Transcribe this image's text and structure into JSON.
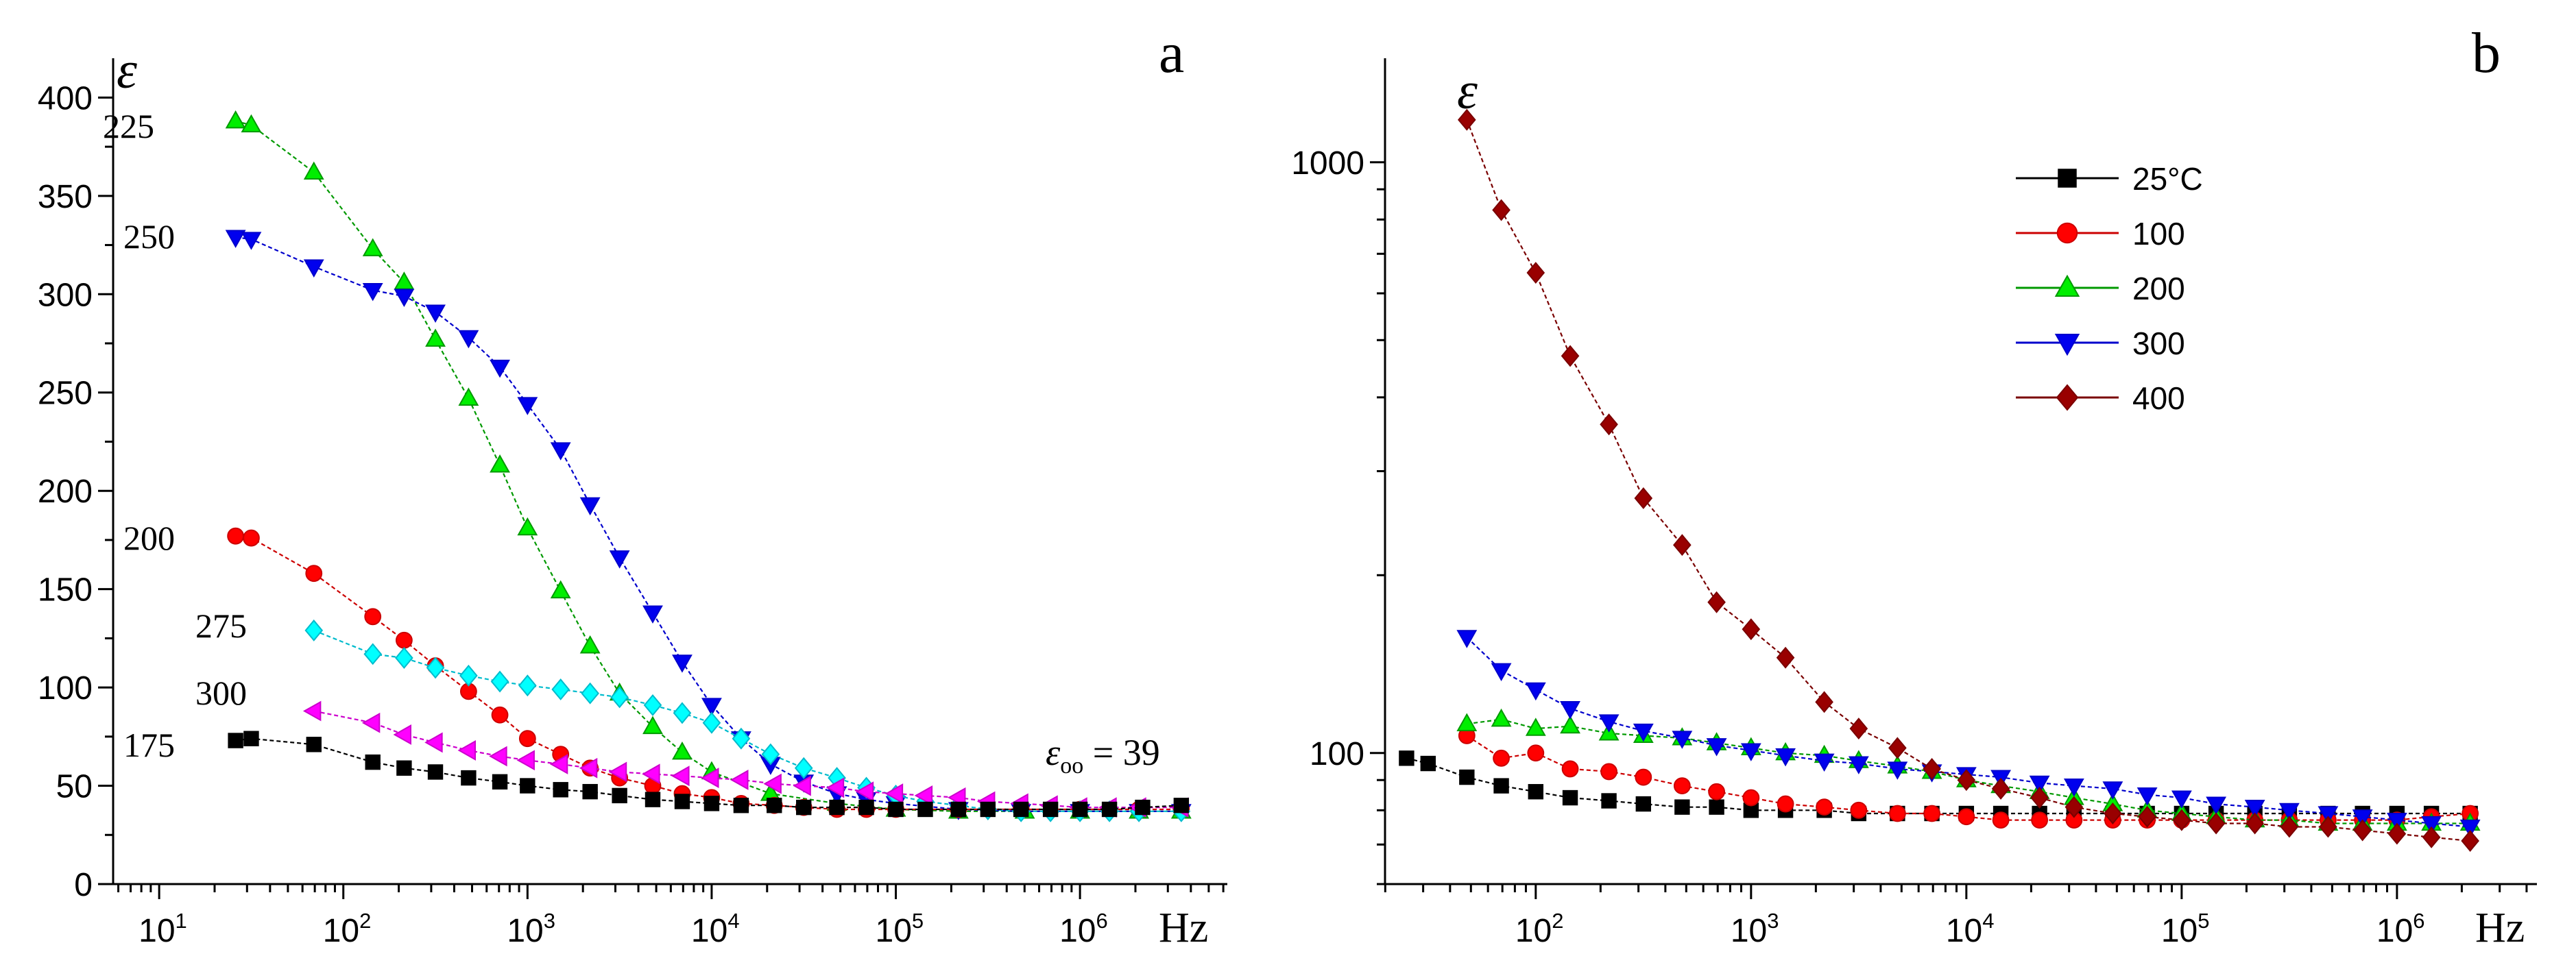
{
  "chart_data": [
    {
      "panel_label": "a",
      "type": "line",
      "xscale": "log",
      "yscale": "linear",
      "xlim_exp": [
        0.75,
        6.8
      ],
      "ylim": [
        0,
        420
      ],
      "x_tick_exponents": [
        1,
        2,
        3,
        4,
        5,
        6
      ],
      "y_ticks": [
        0,
        50,
        100,
        150,
        200,
        250,
        300,
        350,
        400
      ],
      "ylabel": "ε",
      "xlabel": "Hz",
      "annotation": {
        "symbol": "ε",
        "subscript": "oo",
        "text": "= 39"
      },
      "series": [
        {
          "name": "225",
          "color": "#00ee00",
          "stroke": "#009900",
          "marker": "triangle-up",
          "x_exp": [
            1.415,
            1.5,
            1.84,
            2.16,
            2.33,
            2.5,
            2.68,
            2.85,
            3.0,
            3.18,
            3.34,
            3.5,
            3.68,
            3.84,
            4.0,
            4.32,
            4.68,
            5.0,
            5.34,
            5.7,
            6.0,
            6.32,
            6.55
          ],
          "values": [
            388,
            386,
            362,
            323,
            306,
            277,
            247,
            213,
            181,
            149,
            121,
            97,
            80,
            67,
            57,
            46,
            41,
            38,
            37,
            37,
            37,
            37,
            37
          ]
        },
        {
          "name": "250",
          "color": "#0000ee",
          "stroke": "#0000cc",
          "marker": "triangle-down",
          "x_exp": [
            1.415,
            1.5,
            1.84,
            2.16,
            2.33,
            2.5,
            2.68,
            2.85,
            3.0,
            3.18,
            3.34,
            3.5,
            3.68,
            3.84,
            4.0,
            4.16,
            4.32,
            4.5,
            4.68,
            4.84,
            5.0,
            5.34,
            5.68,
            6.0,
            6.32,
            6.55
          ],
          "values": [
            329,
            328,
            314,
            302,
            299,
            291,
            278,
            263,
            244,
            221,
            193,
            166,
            138,
            113,
            91,
            74,
            61,
            52,
            46,
            43,
            41,
            38,
            37,
            37,
            37,
            37
          ]
        },
        {
          "name": "200",
          "color": "#ff0000",
          "stroke": "#cc0000",
          "marker": "circle",
          "x_exp": [
            1.415,
            1.5,
            1.84,
            2.16,
            2.33,
            2.5,
            2.68,
            2.85,
            3.0,
            3.18,
            3.34,
            3.5,
            3.68,
            3.84,
            4.0,
            4.16,
            4.34,
            4.5,
            4.68,
            4.84,
            5.0,
            5.34,
            5.68,
            6.0,
            6.32,
            6.55
          ],
          "values": [
            177,
            176,
            158,
            136,
            124,
            111,
            98,
            86,
            74,
            66,
            59,
            54,
            50,
            46,
            44,
            41,
            40,
            39,
            38,
            38,
            38,
            38,
            38,
            38,
            38,
            38
          ]
        },
        {
          "name": "275",
          "color": "#00ffff",
          "stroke": "#00bbcc",
          "marker": "diamond",
          "x_exp": [
            1.84,
            2.16,
            2.33,
            2.5,
            2.68,
            2.85,
            3.0,
            3.18,
            3.34,
            3.5,
            3.68,
            3.84,
            4.0,
            4.16,
            4.32,
            4.5,
            4.68,
            4.84,
            5.0,
            5.16,
            5.34,
            5.5,
            5.68,
            5.84,
            6.0,
            6.16,
            6.32,
            6.55
          ],
          "values": [
            129,
            117,
            115,
            110,
            106,
            103,
            101,
            99,
            97,
            95,
            91,
            87,
            82,
            74,
            66,
            59,
            54,
            49,
            45,
            42,
            40,
            38,
            37,
            37,
            37,
            37,
            37,
            37
          ]
        },
        {
          "name": "300",
          "color": "#ff00ff",
          "stroke": "#cc00cc",
          "marker": "triangle-left",
          "x_exp": [
            1.84,
            2.16,
            2.33,
            2.5,
            2.68,
            2.85,
            3.0,
            3.18,
            3.34,
            3.5,
            3.68,
            3.84,
            4.0,
            4.16,
            4.34,
            4.5,
            4.68,
            4.84,
            5.0,
            5.16,
            5.34,
            5.5,
            5.68,
            5.84,
            6.0,
            6.16,
            6.32,
            6.55
          ],
          "values": [
            88,
            82,
            76,
            72,
            68,
            65,
            63,
            61,
            59,
            57,
            56,
            55,
            54,
            53,
            51,
            50,
            49,
            47,
            46,
            45,
            44,
            42,
            41,
            40,
            39,
            39,
            39,
            39
          ]
        },
        {
          "name": "175",
          "color": "#000000",
          "stroke": "#000000",
          "marker": "square",
          "x_exp": [
            1.415,
            1.5,
            1.84,
            2.16,
            2.33,
            2.5,
            2.68,
            2.85,
            3.0,
            3.18,
            3.34,
            3.5,
            3.68,
            3.84,
            4.0,
            4.16,
            4.34,
            4.5,
            4.68,
            4.84,
            5.0,
            5.16,
            5.34,
            5.5,
            5.68,
            5.84,
            6.0,
            6.16,
            6.34,
            6.55
          ],
          "values": [
            73,
            74,
            71,
            62,
            59,
            57,
            54,
            52,
            50,
            48,
            47,
            45,
            43,
            42,
            41,
            40,
            40,
            39,
            39,
            39,
            38,
            38,
            38,
            38,
            38,
            38,
            38,
            38,
            39,
            40
          ]
        }
      ]
    },
    {
      "panel_label": "b",
      "type": "line",
      "xscale": "log",
      "yscale": "log",
      "xlim_exp": [
        1.3,
        6.65
      ],
      "ylim": [
        60,
        1500
      ],
      "x_tick_exponents": [
        2,
        3,
        4,
        5,
        6
      ],
      "y_ticks": [
        100,
        1000
      ],
      "ylabel": "ε",
      "xlabel": "Hz",
      "legend": {
        "placement": "top-right",
        "entries": [
          "25°C",
          "100",
          "200",
          "300",
          "400"
        ]
      },
      "series": [
        {
          "name": "25°C",
          "color": "#000000",
          "stroke": "#000000",
          "marker": "square",
          "x_exp": [
            1.4,
            1.5,
            1.68,
            1.84,
            2.0,
            2.16,
            2.34,
            2.5,
            2.68,
            2.84,
            3.0,
            3.16,
            3.34,
            3.5,
            3.68,
            3.84,
            4.0,
            4.16,
            4.34,
            4.5,
            4.68,
            4.84,
            5.0,
            5.16,
            5.34,
            5.5,
            5.68,
            5.84,
            6.0,
            6.16,
            6.34
          ],
          "values": [
            98,
            96,
            91,
            88,
            86,
            84,
            83,
            82,
            81,
            81,
            80,
            80,
            80,
            79,
            79,
            79,
            79,
            79,
            79,
            79,
            79,
            79,
            79,
            79,
            79,
            79,
            79,
            79,
            79,
            79,
            79
          ]
        },
        {
          "name": "100",
          "color": "#ff0000",
          "stroke": "#cc0000",
          "marker": "circle",
          "x_exp": [
            1.68,
            1.84,
            2.0,
            2.16,
            2.34,
            2.5,
            2.68,
            2.84,
            3.0,
            3.16,
            3.34,
            3.5,
            3.68,
            3.84,
            4.0,
            4.16,
            4.34,
            4.5,
            4.68,
            4.84,
            5.0,
            5.16,
            5.34,
            5.5,
            5.68,
            5.84,
            6.0,
            6.16,
            6.34
          ],
          "values": [
            107,
            98,
            100,
            94,
            93,
            91,
            88,
            86,
            84,
            82,
            81,
            80,
            79,
            79,
            78,
            77,
            77,
            77,
            77,
            77,
            77,
            77,
            77,
            77,
            77,
            77,
            77,
            78,
            79
          ]
        },
        {
          "name": "200",
          "color": "#00ee00",
          "stroke": "#009900",
          "marker": "triangle-up",
          "x_exp": [
            1.68,
            1.84,
            2.0,
            2.16,
            2.34,
            2.5,
            2.68,
            2.84,
            3.0,
            3.16,
            3.34,
            3.5,
            3.68,
            3.84,
            4.0,
            4.16,
            4.34,
            4.5,
            4.68,
            4.84,
            5.0,
            5.16,
            5.34,
            5.5,
            5.68,
            5.84,
            6.0,
            6.16,
            6.34
          ],
          "values": [
            112,
            114,
            110,
            111,
            108,
            107,
            106,
            104,
            102,
            100,
            99,
            97,
            95,
            93,
            90,
            88,
            86,
            84,
            82,
            80,
            79,
            78,
            77,
            77,
            76,
            76,
            76,
            76,
            76
          ]
        },
        {
          "name": "300",
          "color": "#0000ee",
          "stroke": "#0000cc",
          "marker": "triangle-down",
          "x_exp": [
            1.68,
            1.84,
            2.0,
            2.16,
            2.34,
            2.5,
            2.68,
            2.84,
            3.0,
            3.16,
            3.34,
            3.5,
            3.68,
            3.84,
            4.0,
            4.16,
            4.34,
            4.5,
            4.68,
            4.84,
            5.0,
            5.16,
            5.34,
            5.5,
            5.68,
            5.84,
            6.0,
            6.16,
            6.34
          ],
          "values": [
            157,
            138,
            128,
            119,
            113,
            109,
            106,
            103,
            101,
            99,
            97,
            96,
            94,
            93,
            92,
            91,
            89,
            88,
            87,
            85,
            84,
            82,
            81,
            80,
            79,
            78,
            77,
            76,
            75
          ]
        },
        {
          "name": "400",
          "color": "#990000",
          "stroke": "#7a0000",
          "marker": "diamond",
          "x_exp": [
            1.68,
            1.84,
            2.0,
            2.16,
            2.34,
            2.5,
            2.68,
            2.84,
            3.0,
            3.16,
            3.34,
            3.5,
            3.68,
            3.84,
            4.0,
            4.16,
            4.34,
            4.5,
            4.68,
            4.84,
            5.0,
            5.16,
            5.34,
            5.5,
            5.68,
            5.84,
            6.0,
            6.16,
            6.34
          ],
          "values": [
            1180,
            830,
            650,
            470,
            360,
            270,
            225,
            180,
            162,
            145,
            122,
            110,
            102,
            94,
            90,
            87,
            84,
            81,
            79,
            78,
            77,
            76,
            76,
            75,
            75,
            74,
            73,
            72,
            71
          ]
        }
      ]
    }
  ]
}
